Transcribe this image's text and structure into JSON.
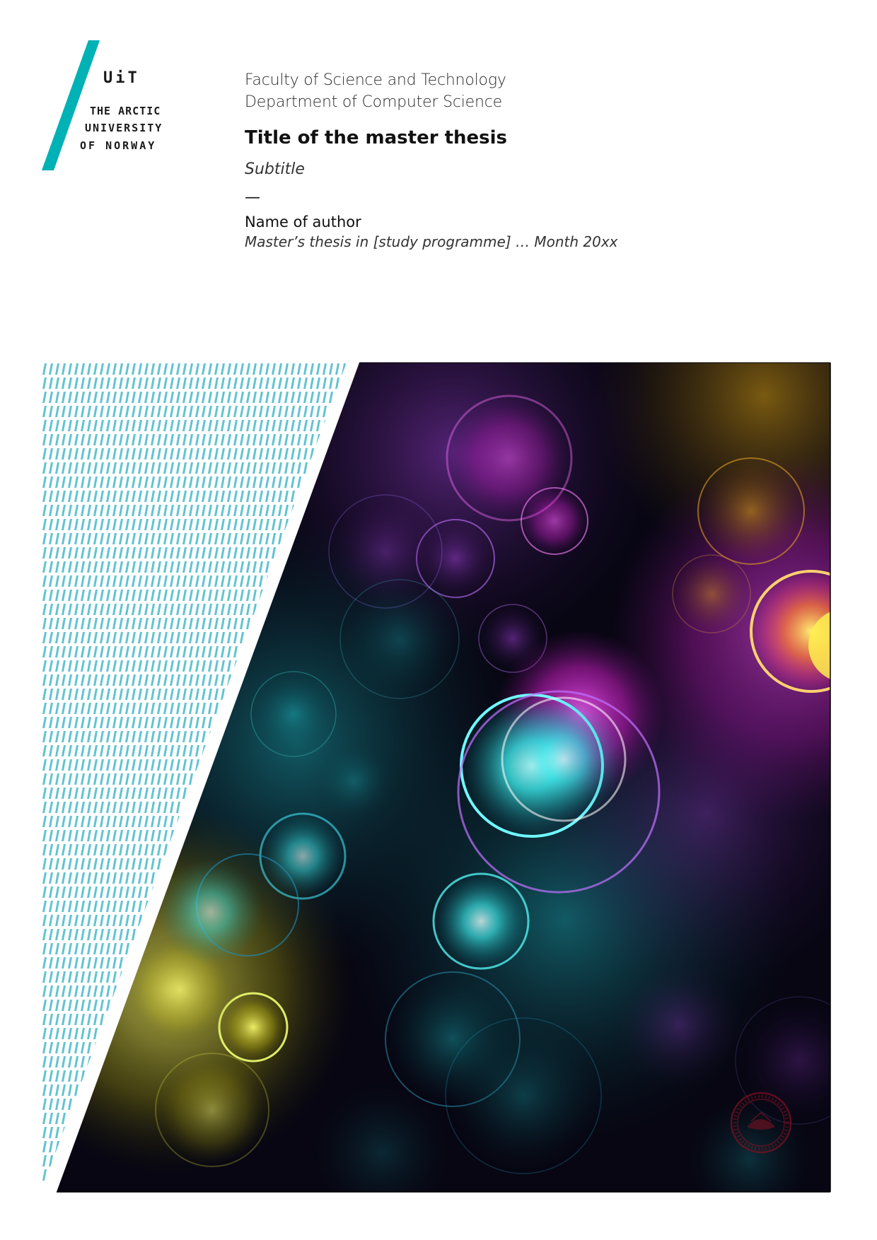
{
  "logo": {
    "acronym": "UiT",
    "line1": "THE ARCTIC",
    "line2": "UNIVERSITY",
    "line3": "OF NORWAY",
    "accent_color": "#00b2b5"
  },
  "header": {
    "faculty": "Faculty of Science and Technology",
    "department": "Department of Computer Science",
    "title": "Title of the master thesis",
    "subtitle": "Subtitle",
    "dash": "—",
    "author": "Name of author",
    "programme": "Master’s thesis in [study programme] … Month 20xx"
  },
  "cover": {
    "pattern_color": "#5fc3d2",
    "background_color": "#070612",
    "icon": "university-seal-icon"
  }
}
